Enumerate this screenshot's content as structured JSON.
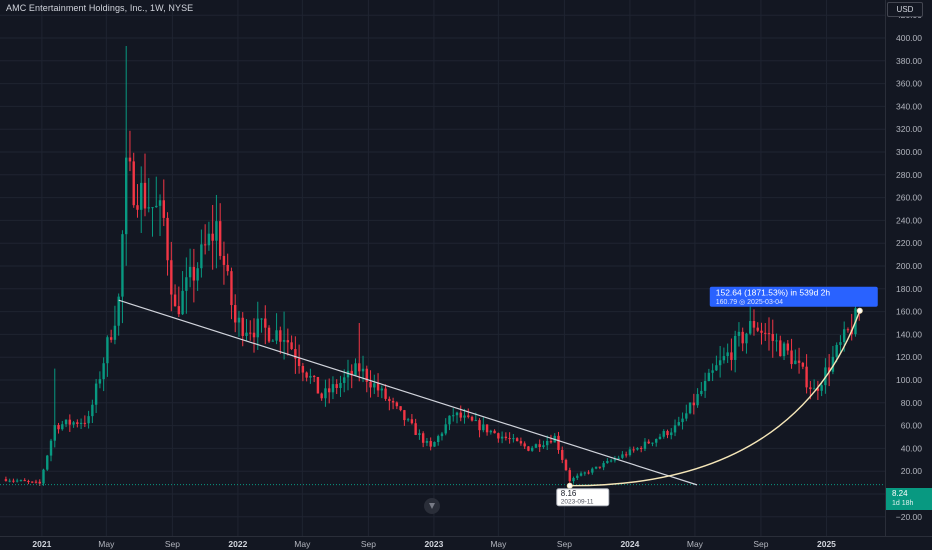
{
  "header": {
    "title": "AMC Entertainment Holdings, Inc., 1W, NYSE",
    "currency_label": "USD"
  },
  "colors": {
    "background": "#131722",
    "up": "#089981",
    "down": "#f23645",
    "grid": "#1f2431",
    "axis_text": "#b2b5be",
    "trendline": "#d1d4dc",
    "arc": "#f5e6b8",
    "measure_box": "#2962ff"
  },
  "price_badge": {
    "value": "8.24",
    "countdown": "1d 18h"
  },
  "measure_label": {
    "line1": "152.64 (1871.53%) in 539d 2h",
    "line2": "160.79 ◎ 2025-03-04"
  },
  "low_label": {
    "value": "8.16",
    "date": "2023-09-11"
  },
  "icons": {
    "tradingview_logo": "tradingview-logo-icon"
  },
  "chart_data": {
    "type": "candlestick",
    "title": "AMC Entertainment Holdings, Inc., 1W, NYSE",
    "xlabel": "",
    "ylabel": "",
    "ylim": [
      -20,
      420
    ],
    "grid": true,
    "y_ticks": [
      "420.00",
      "400.00",
      "380.00",
      "360.00",
      "340.00",
      "320.00",
      "300.00",
      "280.00",
      "260.00",
      "240.00",
      "220.00",
      "200.00",
      "180.00",
      "160.00",
      "140.00",
      "120.00",
      "100.00",
      "80.00",
      "60.00",
      "40.00",
      "20.00",
      "0.00",
      "−20.00"
    ],
    "x_ticks": [
      {
        "label": "2021",
        "date": "2021-01-01"
      },
      {
        "label": "May",
        "date": "2021-05-01"
      },
      {
        "label": "Sep",
        "date": "2021-09-01"
      },
      {
        "label": "2022",
        "date": "2022-01-01"
      },
      {
        "label": "May",
        "date": "2022-05-01"
      },
      {
        "label": "Sep",
        "date": "2022-09-01"
      },
      {
        "label": "2023",
        "date": "2023-01-01"
      },
      {
        "label": "May",
        "date": "2023-05-01"
      },
      {
        "label": "Sep",
        "date": "2023-09-01"
      },
      {
        "label": "2024",
        "date": "2024-01-01"
      },
      {
        "label": "May",
        "date": "2024-05-01"
      },
      {
        "label": "Sep",
        "date": "2024-09-01"
      },
      {
        "label": "2025",
        "date": "2025-01-01"
      }
    ],
    "x_range": [
      "2020-10-15",
      "2025-04-20"
    ],
    "key_points": [
      {
        "date": "2020-10-26",
        "close": 13
      },
      {
        "date": "2020-12-28",
        "close": 9
      },
      {
        "date": "2021-01-25",
        "high": 110,
        "close": 60
      },
      {
        "date": "2021-03-29",
        "close": 65
      },
      {
        "date": "2021-05-24",
        "close": 170
      },
      {
        "date": "2021-06-07",
        "high": 393,
        "close": 280
      },
      {
        "date": "2021-08-16",
        "close": 240
      },
      {
        "date": "2021-09-06",
        "close": 160
      },
      {
        "date": "2021-11-22",
        "close": 235
      },
      {
        "date": "2021-12-27",
        "close": 150
      },
      {
        "date": "2022-03-28",
        "high": 160,
        "close": 140
      },
      {
        "date": "2022-06-06",
        "close": 85
      },
      {
        "date": "2022-08-15",
        "high": 150,
        "close": 110
      },
      {
        "date": "2022-12-26",
        "close": 40
      },
      {
        "date": "2023-02-06",
        "close": 70
      },
      {
        "date": "2023-06-26",
        "close": 40
      },
      {
        "date": "2023-08-14",
        "close": 50
      },
      {
        "date": "2023-09-11",
        "low": 8.16,
        "close": 12
      },
      {
        "date": "2024-01-15",
        "close": 40
      },
      {
        "date": "2024-04-01",
        "close": 60
      },
      {
        "date": "2024-06-10",
        "close": 110
      },
      {
        "date": "2024-08-19",
        "high": 162,
        "close": 150
      },
      {
        "date": "2024-10-28",
        "close": 120
      },
      {
        "date": "2024-12-09",
        "close": 90
      },
      {
        "date": "2025-03-03",
        "high": 160.79,
        "close": 158
      }
    ],
    "trendline": {
      "from": {
        "date": "2021-05-24",
        "value": 170
      },
      "to": {
        "date": "2024-05-05",
        "value": 8
      }
    },
    "measure_arc": {
      "from": {
        "date": "2023-09-11",
        "value": 8.16
      },
      "to": {
        "date": "2025-03-04",
        "value": 160.79
      }
    }
  }
}
